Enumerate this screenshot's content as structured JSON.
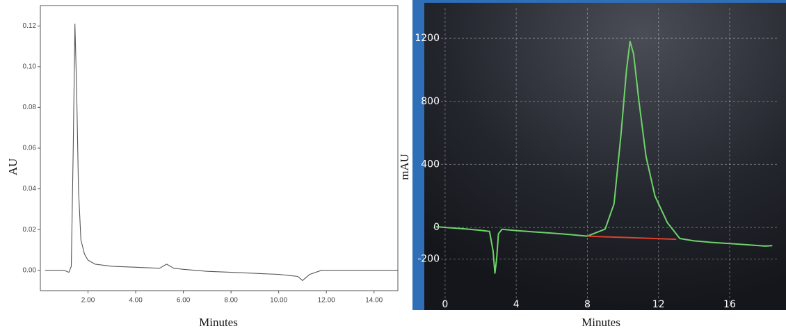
{
  "chart_data": [
    {
      "type": "line",
      "x_label": "Minutes",
      "y_label": "AU",
      "xlim": [
        0,
        15
      ],
      "ylim": [
        -0.01,
        0.13
      ],
      "xticks": [
        {
          "value": 2,
          "label": "2.00"
        },
        {
          "value": 4,
          "label": "4.00"
        },
        {
          "value": 6,
          "label": "6.00"
        },
        {
          "value": 8,
          "label": "8.00"
        },
        {
          "value": 10,
          "label": "10.00"
        },
        {
          "value": 12,
          "label": "12.00"
        },
        {
          "value": 14,
          "label": "14.00"
        }
      ],
      "yticks": [
        {
          "value": 0,
          "label": "0.00"
        },
        {
          "value": 0.02,
          "label": "0.02"
        },
        {
          "value": 0.04,
          "label": "0.04"
        },
        {
          "value": 0.06,
          "label": "0.06"
        },
        {
          "value": 0.08,
          "label": "0.08"
        },
        {
          "value": 0.1,
          "label": "0.10"
        },
        {
          "value": 0.12,
          "label": "0.12"
        }
      ],
      "grid": false,
      "series": [
        {
          "color": "#555555",
          "x": [
            0.2,
            0.5,
            1.0,
            1.2,
            1.3,
            1.38,
            1.45,
            1.52,
            1.6,
            1.7,
            1.85,
            2.0,
            2.3,
            3,
            4,
            5,
            5.3,
            5.6,
            6,
            7,
            8,
            9,
            10,
            10.8,
            11.0,
            11.3,
            11.8,
            12.5,
            13.5,
            15
          ],
          "values": [
            0,
            0,
            0,
            -0.001,
            0.002,
            0.06,
            0.121,
            0.09,
            0.04,
            0.015,
            0.008,
            0.005,
            0.003,
            0.002,
            0.0015,
            0.001,
            0.003,
            0.001,
            0.0005,
            -0.0005,
            -0.001,
            -0.0015,
            -0.002,
            -0.003,
            -0.005,
            -0.002,
            0,
            0,
            0,
            0
          ]
        }
      ]
    },
    {
      "type": "line",
      "x_label": "Minutes",
      "y_label": "mAU",
      "xlim": [
        -0.7,
        18.7
      ],
      "ylim": [
        -498,
        1390
      ],
      "xticks": [
        0,
        4,
        8,
        12,
        16
      ],
      "yticks": [
        -200,
        0,
        400,
        800,
        1200
      ],
      "grid": true,
      "series": [
        {
          "color": "#6fd36a",
          "x": [
            -0.5,
            0,
            1,
            2,
            2.5,
            2.7,
            2.8,
            2.9,
            3.0,
            3.2,
            4,
            5,
            6,
            7,
            8,
            9,
            9.5,
            9.9,
            10.2,
            10.4,
            10.6,
            10.9,
            11.3,
            11.8,
            12.5,
            13.2,
            14,
            15,
            16,
            17,
            18,
            18.4
          ],
          "values": [
            5,
            0,
            -8,
            -18,
            -25,
            -150,
            -290,
            -200,
            -40,
            -12,
            -20,
            -28,
            -36,
            -45,
            -55,
            -10,
            150,
            600,
            1000,
            1180,
            1100,
            800,
            450,
            200,
            30,
            -70,
            -85,
            -95,
            -102,
            -110,
            -118,
            -115
          ]
        },
        {
          "color": "#e0402a",
          "x": [
            8,
            13
          ],
          "values": [
            -55,
            -75
          ]
        }
      ]
    }
  ]
}
